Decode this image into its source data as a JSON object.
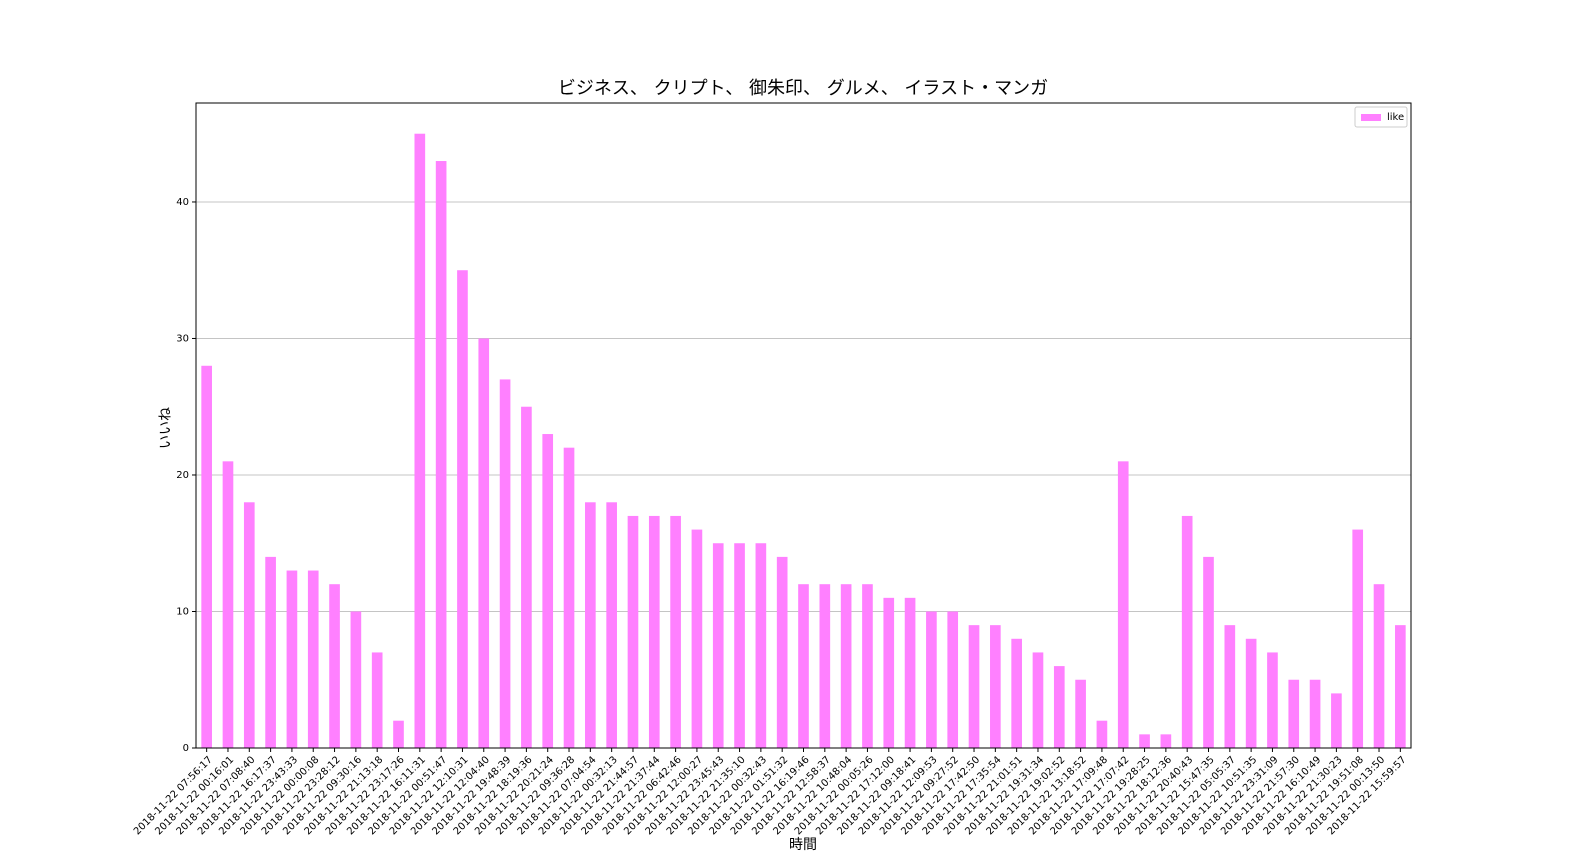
{
  "chart_data": {
    "type": "bar",
    "title": "ビジネス、 クリプト、 御朱印、 グルメ、 イラスト・マンガ",
    "x_label": "時間",
    "y_label": "いいね",
    "categories": [
      "2018-11-22 07:56:17",
      "2018-11-22 00:16:01",
      "2018-11-22 07:08:40",
      "2018-11-22 16:17:37",
      "2018-11-22 23:43:33",
      "2018-11-22 00:00:08",
      "2018-11-22 23:28:12",
      "2018-11-22 09:30:16",
      "2018-11-22 21:13:18",
      "2018-11-22 23:17:26",
      "2018-11-22 16:11:31",
      "2018-11-22 00:51:47",
      "2018-11-22 12:10:31",
      "2018-11-22 12:04:40",
      "2018-11-22 19:48:39",
      "2018-11-22 18:19:36",
      "2018-11-22 20:21:24",
      "2018-11-22 09:36:28",
      "2018-11-22 07:04:54",
      "2018-11-22 00:32:13",
      "2018-11-22 21:44:57",
      "2018-11-22 21:37:44",
      "2018-11-22 06:42:46",
      "2018-11-22 12:00:27",
      "2018-11-22 23:45:43",
      "2018-11-22 21:35:10",
      "2018-11-22 00:32:43",
      "2018-11-22 01:51:32",
      "2018-11-22 16:19:46",
      "2018-11-22 12:58:37",
      "2018-11-22 10:48:04",
      "2018-11-22 00:05:26",
      "2018-11-22 17:12:00",
      "2018-11-22 09:18:41",
      "2018-11-22 12:09:53",
      "2018-11-22 09:27:52",
      "2018-11-22 17:42:50",
      "2018-11-22 17:35:54",
      "2018-11-22 21:01:51",
      "2018-11-22 19:31:34",
      "2018-11-22 19:02:52",
      "2018-11-22 13:18:52",
      "2018-11-22 17:09:48",
      "2018-11-22 17:07:42",
      "2018-11-22 19:28:25",
      "2018-11-22 18:12:36",
      "2018-11-22 20:40:43",
      "2018-11-22 15:47:35",
      "2018-11-22 05:05:37",
      "2018-11-22 10:51:35",
      "2018-11-22 23:31:09",
      "2018-11-22 21:57:30",
      "2018-11-22 16:10:49",
      "2018-11-22 21:30:23",
      "2018-11-22 19:51:08",
      "2018-11-22 00:13:50",
      "2018-11-22 15:59:57"
    ],
    "series": [
      {
        "name": "like",
        "color": "#ff80ff",
        "values": [
          28,
          21,
          18,
          14,
          13,
          13,
          12,
          10,
          7,
          2,
          45,
          43,
          35,
          30,
          27,
          25,
          23,
          22,
          18,
          18,
          17,
          17,
          17,
          16,
          15,
          15,
          15,
          14,
          12,
          12,
          12,
          12,
          11,
          11,
          10,
          10,
          9,
          9,
          8,
          7,
          6,
          5,
          2,
          21,
          1,
          1,
          17,
          14,
          9,
          8,
          7,
          5,
          5,
          4,
          16,
          12,
          9
        ]
      }
    ],
    "ylim": [
      0,
      47.25
    ],
    "yticks": [
      0,
      10,
      20,
      30,
      40
    ],
    "grid": true,
    "legend": "upper right"
  }
}
